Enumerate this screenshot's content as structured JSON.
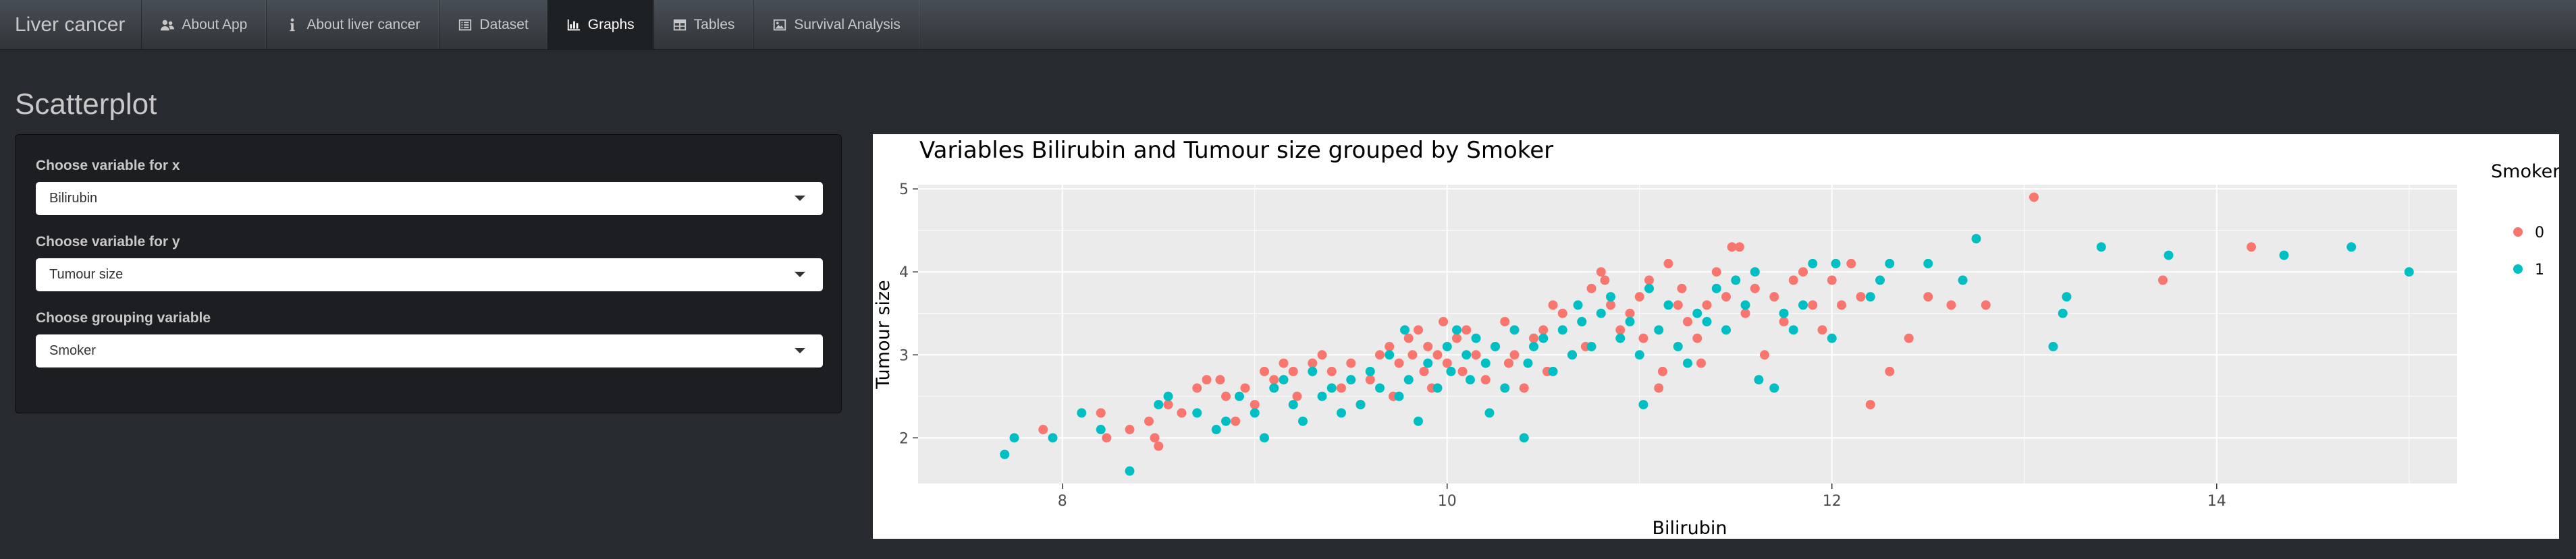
{
  "navbar": {
    "brand": "Liver cancer",
    "items": [
      {
        "label": "About App",
        "icon": "users-icon"
      },
      {
        "label": "About liver cancer",
        "icon": "info-icon"
      },
      {
        "label": "Dataset",
        "icon": "list-alt-icon"
      },
      {
        "label": "Graphs",
        "icon": "bar-chart-icon"
      },
      {
        "label": "Tables",
        "icon": "table-icon"
      },
      {
        "label": "Survival Analysis",
        "icon": "image-icon"
      }
    ],
    "active_index": 3
  },
  "page": {
    "title": "Scatterplot"
  },
  "controls": {
    "x": {
      "label": "Choose variable for x",
      "value": "Bilirubin"
    },
    "y": {
      "label": "Choose variable for y",
      "value": "Tumour size"
    },
    "group": {
      "label": "Choose grouping variable",
      "value": "Smoker"
    }
  },
  "colors": {
    "group0": "#f8766d",
    "group1": "#00bfc4",
    "plot_background": "#ebebeb",
    "grid": "#ffffff",
    "navbar": "#3a3f44",
    "page_background": "#272b30"
  },
  "chart_data": {
    "type": "scatter",
    "title": "Variables Bilirubin and Tumour size grouped by Smoker",
    "xlabel": "Bilirubin",
    "ylabel": "Tumour size",
    "xlim": [
      7.25,
      15.25
    ],
    "ylim": [
      1.45,
      5.05
    ],
    "xticks": [
      8,
      10,
      12,
      14
    ],
    "yticks": [
      2,
      3,
      4,
      5
    ],
    "grid": true,
    "legend": {
      "title": "Smoker",
      "position": "right"
    },
    "series": [
      {
        "name": "0",
        "points": [
          [
            7.9,
            2.1
          ],
          [
            8.2,
            2.3
          ],
          [
            8.23,
            2.0
          ],
          [
            8.35,
            2.1
          ],
          [
            8.45,
            2.2
          ],
          [
            8.48,
            2.0
          ],
          [
            8.5,
            1.9
          ],
          [
            8.55,
            2.4
          ],
          [
            8.62,
            2.3
          ],
          [
            8.7,
            2.6
          ],
          [
            8.75,
            2.7
          ],
          [
            8.82,
            2.7
          ],
          [
            8.85,
            2.5
          ],
          [
            8.9,
            2.2
          ],
          [
            8.95,
            2.6
          ],
          [
            9.0,
            2.4
          ],
          [
            9.05,
            2.8
          ],
          [
            9.1,
            2.7
          ],
          [
            9.15,
            2.9
          ],
          [
            9.2,
            2.8
          ],
          [
            9.22,
            2.5
          ],
          [
            9.3,
            2.9
          ],
          [
            9.35,
            3.0
          ],
          [
            9.4,
            2.8
          ],
          [
            9.45,
            2.6
          ],
          [
            9.5,
            2.9
          ],
          [
            9.55,
            2.4
          ],
          [
            9.6,
            2.7
          ],
          [
            9.65,
            3.0
          ],
          [
            9.7,
            3.1
          ],
          [
            9.72,
            2.5
          ],
          [
            9.75,
            2.9
          ],
          [
            9.8,
            3.2
          ],
          [
            9.82,
            3.0
          ],
          [
            9.85,
            3.3
          ],
          [
            9.88,
            2.8
          ],
          [
            9.9,
            3.1
          ],
          [
            9.92,
            2.6
          ],
          [
            9.95,
            3.0
          ],
          [
            9.98,
            3.4
          ],
          [
            10.0,
            2.9
          ],
          [
            10.05,
            3.2
          ],
          [
            10.08,
            2.8
          ],
          [
            10.1,
            3.3
          ],
          [
            10.15,
            3.0
          ],
          [
            10.2,
            2.7
          ],
          [
            10.25,
            3.1
          ],
          [
            10.3,
            3.4
          ],
          [
            10.32,
            2.9
          ],
          [
            10.35,
            3.0
          ],
          [
            10.4,
            2.6
          ],
          [
            10.45,
            3.2
          ],
          [
            10.5,
            3.3
          ],
          [
            10.52,
            2.8
          ],
          [
            10.55,
            3.6
          ],
          [
            10.6,
            3.5
          ],
          [
            10.65,
            3.0
          ],
          [
            10.7,
            3.4
          ],
          [
            10.72,
            3.1
          ],
          [
            10.75,
            3.8
          ],
          [
            10.8,
            4.0
          ],
          [
            10.82,
            3.9
          ],
          [
            10.85,
            3.6
          ],
          [
            10.9,
            3.3
          ],
          [
            10.95,
            3.5
          ],
          [
            11.0,
            3.7
          ],
          [
            11.02,
            3.2
          ],
          [
            11.05,
            3.9
          ],
          [
            11.1,
            2.6
          ],
          [
            11.12,
            2.8
          ],
          [
            11.15,
            4.1
          ],
          [
            11.2,
            3.6
          ],
          [
            11.22,
            3.8
          ],
          [
            11.25,
            3.4
          ],
          [
            11.3,
            3.2
          ],
          [
            11.32,
            2.9
          ],
          [
            11.35,
            3.6
          ],
          [
            11.4,
            4.0
          ],
          [
            11.45,
            3.7
          ],
          [
            11.48,
            4.3
          ],
          [
            11.52,
            4.3
          ],
          [
            11.55,
            3.5
          ],
          [
            11.6,
            3.8
          ],
          [
            11.65,
            3.0
          ],
          [
            11.7,
            3.7
          ],
          [
            11.75,
            3.4
          ],
          [
            11.8,
            3.9
          ],
          [
            11.85,
            4.0
          ],
          [
            11.9,
            3.6
          ],
          [
            11.95,
            3.3
          ],
          [
            12.0,
            3.9
          ],
          [
            12.05,
            3.6
          ],
          [
            12.1,
            4.1
          ],
          [
            12.15,
            3.7
          ],
          [
            12.2,
            2.4
          ],
          [
            12.3,
            2.8
          ],
          [
            12.4,
            3.2
          ],
          [
            12.5,
            3.7
          ],
          [
            12.62,
            3.6
          ],
          [
            12.8,
            3.6
          ],
          [
            13.05,
            4.9
          ],
          [
            13.72,
            3.9
          ],
          [
            14.18,
            4.3
          ]
        ]
      },
      {
        "name": "1",
        "points": [
          [
            7.7,
            1.8
          ],
          [
            7.75,
            2.0
          ],
          [
            7.95,
            2.0
          ],
          [
            8.1,
            2.3
          ],
          [
            8.2,
            2.1
          ],
          [
            8.35,
            1.6
          ],
          [
            8.5,
            2.4
          ],
          [
            8.55,
            2.5
          ],
          [
            8.7,
            2.3
          ],
          [
            8.8,
            2.1
          ],
          [
            8.85,
            2.2
          ],
          [
            8.92,
            2.5
          ],
          [
            9.0,
            2.3
          ],
          [
            9.05,
            2.0
          ],
          [
            9.1,
            2.6
          ],
          [
            9.15,
            2.7
          ],
          [
            9.2,
            2.4
          ],
          [
            9.25,
            2.2
          ],
          [
            9.3,
            2.8
          ],
          [
            9.35,
            2.5
          ],
          [
            9.4,
            2.6
          ],
          [
            9.45,
            2.3
          ],
          [
            9.5,
            2.7
          ],
          [
            9.55,
            2.4
          ],
          [
            9.6,
            2.8
          ],
          [
            9.65,
            2.6
          ],
          [
            9.7,
            3.0
          ],
          [
            9.75,
            2.5
          ],
          [
            9.78,
            3.3
          ],
          [
            9.8,
            2.7
          ],
          [
            9.85,
            2.2
          ],
          [
            9.9,
            2.9
          ],
          [
            9.95,
            2.6
          ],
          [
            10.0,
            3.1
          ],
          [
            10.02,
            2.8
          ],
          [
            10.05,
            3.3
          ],
          [
            10.1,
            3.0
          ],
          [
            10.12,
            2.7
          ],
          [
            10.15,
            3.2
          ],
          [
            10.2,
            2.9
          ],
          [
            10.22,
            2.3
          ],
          [
            10.25,
            3.1
          ],
          [
            10.3,
            2.6
          ],
          [
            10.35,
            3.3
          ],
          [
            10.4,
            2.0
          ],
          [
            10.42,
            2.9
          ],
          [
            10.45,
            3.1
          ],
          [
            10.5,
            3.2
          ],
          [
            10.55,
            2.8
          ],
          [
            10.6,
            3.3
          ],
          [
            10.65,
            3.0
          ],
          [
            10.68,
            3.6
          ],
          [
            10.7,
            3.4
          ],
          [
            10.75,
            3.1
          ],
          [
            10.8,
            3.5
          ],
          [
            10.85,
            3.7
          ],
          [
            10.9,
            3.2
          ],
          [
            10.95,
            3.4
          ],
          [
            11.0,
            3.0
          ],
          [
            11.02,
            2.4
          ],
          [
            11.05,
            3.8
          ],
          [
            11.1,
            3.3
          ],
          [
            11.15,
            3.6
          ],
          [
            11.2,
            3.1
          ],
          [
            11.25,
            2.9
          ],
          [
            11.3,
            3.5
          ],
          [
            11.35,
            3.4
          ],
          [
            11.4,
            3.8
          ],
          [
            11.45,
            3.3
          ],
          [
            11.5,
            3.9
          ],
          [
            11.55,
            3.6
          ],
          [
            11.6,
            4.0
          ],
          [
            11.62,
            2.7
          ],
          [
            11.7,
            2.6
          ],
          [
            11.75,
            3.5
          ],
          [
            11.8,
            3.3
          ],
          [
            11.85,
            3.6
          ],
          [
            11.9,
            4.1
          ],
          [
            12.0,
            3.2
          ],
          [
            12.02,
            4.1
          ],
          [
            12.2,
            3.7
          ],
          [
            12.25,
            3.9
          ],
          [
            12.3,
            4.1
          ],
          [
            12.5,
            4.1
          ],
          [
            12.68,
            3.9
          ],
          [
            12.75,
            4.4
          ],
          [
            13.15,
            3.1
          ],
          [
            13.2,
            3.5
          ],
          [
            13.22,
            3.7
          ],
          [
            13.4,
            4.3
          ],
          [
            13.75,
            4.2
          ],
          [
            14.35,
            4.2
          ],
          [
            14.7,
            4.3
          ],
          [
            15.0,
            4.0
          ]
        ]
      }
    ]
  }
}
